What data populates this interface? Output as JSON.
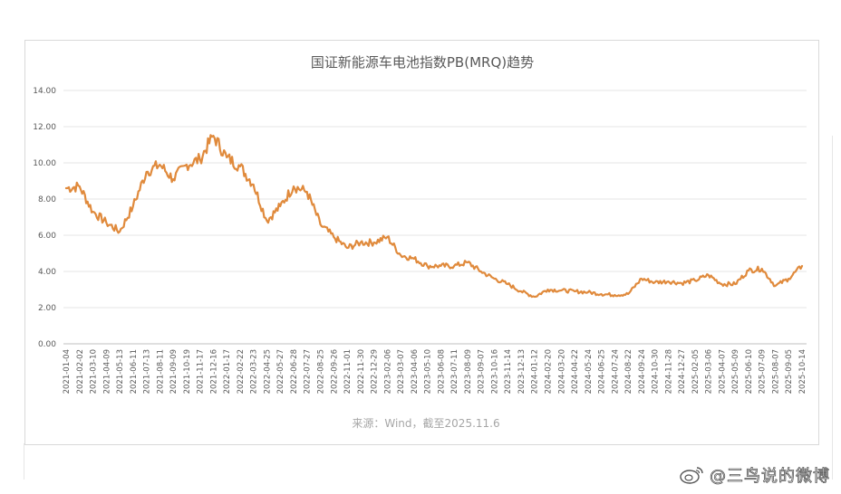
{
  "watermark": {
    "text": "@三鸟说的微博",
    "icon": "weibo-icon"
  },
  "chart_data": {
    "type": "line",
    "title": "国证新能源车电池指数PB(MRQ)趋势",
    "source": "来源：Wind，截至2025.11.6",
    "ylim": [
      0,
      14
    ],
    "yticks": [
      "0.00",
      "2.00",
      "4.00",
      "6.00",
      "8.00",
      "10.00",
      "12.00",
      "14.00"
    ],
    "grid": true,
    "series_color": "#E08A3C",
    "categories": [
      "2021-01-04",
      "2021-02-02",
      "2021-03-10",
      "2021-04-09",
      "2021-05-13",
      "2021-06-11",
      "2021-07-13",
      "2021-08-11",
      "2021-09-09",
      "2021-10-19",
      "2021-11-17",
      "2021-12-16",
      "2022-01-17",
      "2022-02-22",
      "2022-03-23",
      "2022-04-25",
      "2022-05-27",
      "2022-06-28",
      "2022-07-27",
      "2022-08-25",
      "2022-09-26",
      "2022-11-01",
      "2022-11-30",
      "2022-12-29",
      "2023-02-06",
      "2023-03-07",
      "2023-04-06",
      "2023-05-10",
      "2023-06-08",
      "2023-07-11",
      "2023-08-09",
      "2023-09-07",
      "2023-10-16",
      "2023-11-14",
      "2023-12-13",
      "2024-01-12",
      "2024-02-20",
      "2024-03-20",
      "2024-04-22",
      "2024-05-24",
      "2024-06-25",
      "2024-07-24",
      "2024-08-22",
      "2024-09-24",
      "2024-10-30",
      "2024-11-28",
      "2024-12-27",
      "2025-02-05",
      "2025-03-06",
      "2025-04-07",
      "2025-05-09",
      "2025-06-10",
      "2025-07-09",
      "2025-08-07",
      "2025-09-05",
      "2025-10-14"
    ],
    "series": [
      {
        "values": [
          8.6,
          8.7,
          7.3,
          6.7,
          6.2,
          7.6,
          9.5,
          9.9,
          9.1,
          9.9,
          10.2,
          11.5,
          10.3,
          9.8,
          8.8,
          6.8,
          7.6,
          8.7,
          8.4,
          6.6,
          5.9,
          5.3,
          5.6,
          5.6,
          5.9,
          4.9,
          4.7,
          4.3,
          4.3,
          4.3,
          4.5,
          4.0,
          3.6,
          3.3,
          2.9,
          2.6,
          3.0,
          2.95,
          2.9,
          2.85,
          2.75,
          2.7,
          2.75,
          3.6,
          3.4,
          3.45,
          3.35,
          3.5,
          3.8,
          3.3,
          3.3,
          4.05,
          4.15,
          3.2,
          3.6,
          4.3
        ]
      }
    ]
  }
}
